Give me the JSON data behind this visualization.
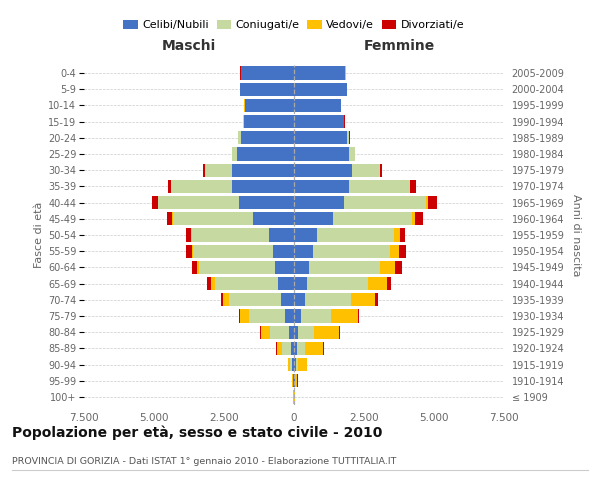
{
  "age_groups": [
    "100+",
    "95-99",
    "90-94",
    "85-89",
    "80-84",
    "75-79",
    "70-74",
    "65-69",
    "60-64",
    "55-59",
    "50-54",
    "45-49",
    "40-44",
    "35-39",
    "30-34",
    "25-29",
    "20-24",
    "15-19",
    "10-14",
    "5-9",
    "0-4"
  ],
  "birth_years": [
    "≤ 1909",
    "1910-1914",
    "1915-1919",
    "1920-1924",
    "1925-1929",
    "1930-1934",
    "1935-1939",
    "1940-1944",
    "1945-1949",
    "1950-1954",
    "1955-1959",
    "1960-1964",
    "1965-1969",
    "1970-1974",
    "1975-1979",
    "1980-1984",
    "1985-1989",
    "1990-1994",
    "1995-1999",
    "2000-2004",
    "2005-2009"
  ],
  "maschi": {
    "celibi": [
      10,
      25,
      55,
      110,
      180,
      320,
      470,
      580,
      680,
      740,
      880,
      1480,
      1980,
      2200,
      2200,
      2020,
      1900,
      1800,
      1760,
      1920,
      1900
    ],
    "coniugati": [
      5,
      25,
      75,
      320,
      680,
      1300,
      1850,
      2250,
      2700,
      2850,
      2780,
      2850,
      2880,
      2180,
      980,
      190,
      90,
      18,
      5,
      5,
      5
    ],
    "vedovi": [
      5,
      20,
      75,
      190,
      330,
      320,
      230,
      140,
      90,
      55,
      35,
      18,
      12,
      8,
      5,
      5,
      5,
      5,
      5,
      5,
      5
    ],
    "divorziati": [
      2,
      5,
      8,
      14,
      18,
      28,
      75,
      145,
      190,
      195,
      145,
      195,
      195,
      115,
      55,
      8,
      5,
      5,
      5,
      5,
      5
    ]
  },
  "femmine": {
    "nubili": [
      10,
      28,
      55,
      100,
      145,
      260,
      380,
      480,
      530,
      680,
      830,
      1380,
      1780,
      1980,
      2080,
      1980,
      1880,
      1780,
      1680,
      1880,
      1830
    ],
    "coniugate": [
      5,
      18,
      75,
      280,
      580,
      1050,
      1650,
      2150,
      2550,
      2750,
      2750,
      2850,
      2950,
      2150,
      980,
      195,
      95,
      18,
      5,
      5,
      5
    ],
    "vedove": [
      10,
      75,
      330,
      670,
      880,
      980,
      870,
      680,
      530,
      330,
      190,
      95,
      45,
      28,
      12,
      5,
      5,
      5,
      5,
      5,
      5
    ],
    "divorziate": [
      2,
      5,
      9,
      18,
      28,
      48,
      95,
      165,
      240,
      240,
      195,
      290,
      340,
      195,
      55,
      8,
      5,
      5,
      5,
      5,
      5
    ]
  },
  "colors": {
    "celibi": "#4472c4",
    "coniugati": "#c5d9a0",
    "vedovi": "#ffc000",
    "divorziati": "#cc0000"
  },
  "xlim": 7500,
  "title": "Popolazione per età, sesso e stato civile - 2010",
  "subtitle": "PROVINCIA DI GORIZIA - Dati ISTAT 1° gennaio 2010 - Elaborazione TUTTITALIA.IT",
  "ylabel_left": "Fasce di età",
  "ylabel_right": "Anni di nascita",
  "legend_labels": [
    "Celibi/Nubili",
    "Coniugati/e",
    "Vedovi/e",
    "Divorziati/e"
  ],
  "maschi_label": "Maschi",
  "femmine_label": "Femmine"
}
